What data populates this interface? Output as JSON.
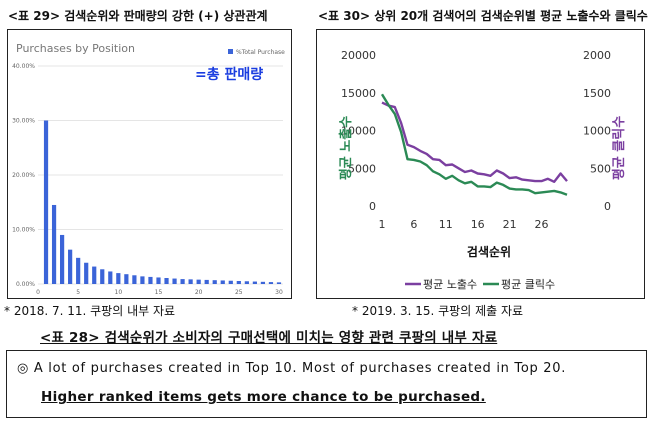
{
  "left_figure": {
    "title": "<표 29> 검색순위와 판매량의 강한 (+) 상관관계",
    "chart_title": "Purchases by Position",
    "legend_label": "%Total Purchase",
    "annotation": "=총 판매량",
    "source": "* 2018. 7. 11. 쿠팡의 내부 자료",
    "colors": {
      "bar": "#3b64d8",
      "annotation": "#1a3de0",
      "grid": "#dddddd"
    }
  },
  "right_figure": {
    "title": "<표 30> 상위 20개 검색어의 검색순위별 평균 노출수와 클릭수",
    "source": "* 2019. 3. 15. 쿠팡의 제출 자료",
    "colors": {
      "impressions": "#7b3fa0",
      "clicks": "#2b8a55",
      "left_axis_label": "#2b8a55",
      "right_axis_label": "#7b3fa0"
    }
  },
  "caption": "<표 28> 검색순위가 소비자의 구매선택에 미치는 영향 관련 쿠팡의 내부 자료",
  "note": {
    "line1": "◎ A lot of purchases created in Top 10. Most of purchases created in Top 20.",
    "line2": "Higher ranked items gets more chance to be purchased."
  },
  "chart_data": [
    {
      "type": "bar",
      "title": "Purchases by Position",
      "xlabel": "",
      "ylabel": "",
      "ylim": [
        0,
        40
      ],
      "y_ticks": [
        "0.00%",
        "10.00%",
        "20.00%",
        "30.00%",
        "40.00%"
      ],
      "x_ticks": [
        "0",
        "5",
        "10",
        "15",
        "20",
        "25",
        "30"
      ],
      "legend": "top-right",
      "grid": true,
      "series": [
        {
          "name": "%Total Purchase",
          "x": [
            1,
            2,
            3,
            4,
            5,
            6,
            7,
            8,
            9,
            10,
            11,
            12,
            13,
            14,
            15,
            16,
            17,
            18,
            19,
            20,
            21,
            22,
            23,
            24,
            25,
            26,
            27,
            28,
            29,
            30
          ],
          "values": [
            30.0,
            14.5,
            9.0,
            6.3,
            4.8,
            3.9,
            3.2,
            2.7,
            2.3,
            2.0,
            1.8,
            1.6,
            1.4,
            1.3,
            1.2,
            1.1,
            1.0,
            0.9,
            0.85,
            0.8,
            0.75,
            0.7,
            0.65,
            0.6,
            0.55,
            0.5,
            0.45,
            0.4,
            0.35,
            0.3
          ]
        }
      ]
    },
    {
      "type": "line",
      "title": "",
      "xlabel": "검색순위",
      "ylabel": "평균 노출수",
      "y2label": "평균 클릭수",
      "ylim": [
        0,
        20000
      ],
      "y2lim": [
        0,
        2000
      ],
      "y_ticks": [
        "0",
        "5000",
        "10000",
        "15000",
        "20000"
      ],
      "y2_ticks": [
        "0",
        "500",
        "1000",
        "1500",
        "2000"
      ],
      "x_ticks": [
        "1",
        "6",
        "11",
        "16",
        "21",
        "26"
      ],
      "legend": "bottom",
      "grid": false,
      "x": [
        1,
        2,
        3,
        4,
        5,
        6,
        7,
        8,
        9,
        10,
        11,
        12,
        13,
        14,
        15,
        16,
        17,
        18,
        19,
        20,
        21,
        22,
        23,
        24,
        25,
        26,
        27,
        28,
        29,
        30
      ],
      "series": [
        {
          "name": "평균 노출수",
          "axis": "left",
          "values": [
            13700,
            13300,
            13100,
            11000,
            8100,
            7800,
            7300,
            6900,
            6200,
            6100,
            5400,
            5500,
            5000,
            4500,
            4700,
            4300,
            4200,
            4000,
            4700,
            4300,
            3700,
            3800,
            3500,
            3400,
            3300,
            3300,
            3600,
            3200,
            4300,
            3300
          ]
        },
        {
          "name": "평균 클릭수",
          "axis": "right",
          "values": [
            1480,
            1340,
            1220,
            980,
            620,
            610,
            590,
            540,
            460,
            420,
            360,
            400,
            340,
            300,
            320,
            260,
            260,
            250,
            310,
            280,
            230,
            220,
            220,
            210,
            170,
            180,
            190,
            200,
            180,
            150
          ]
        }
      ]
    }
  ]
}
